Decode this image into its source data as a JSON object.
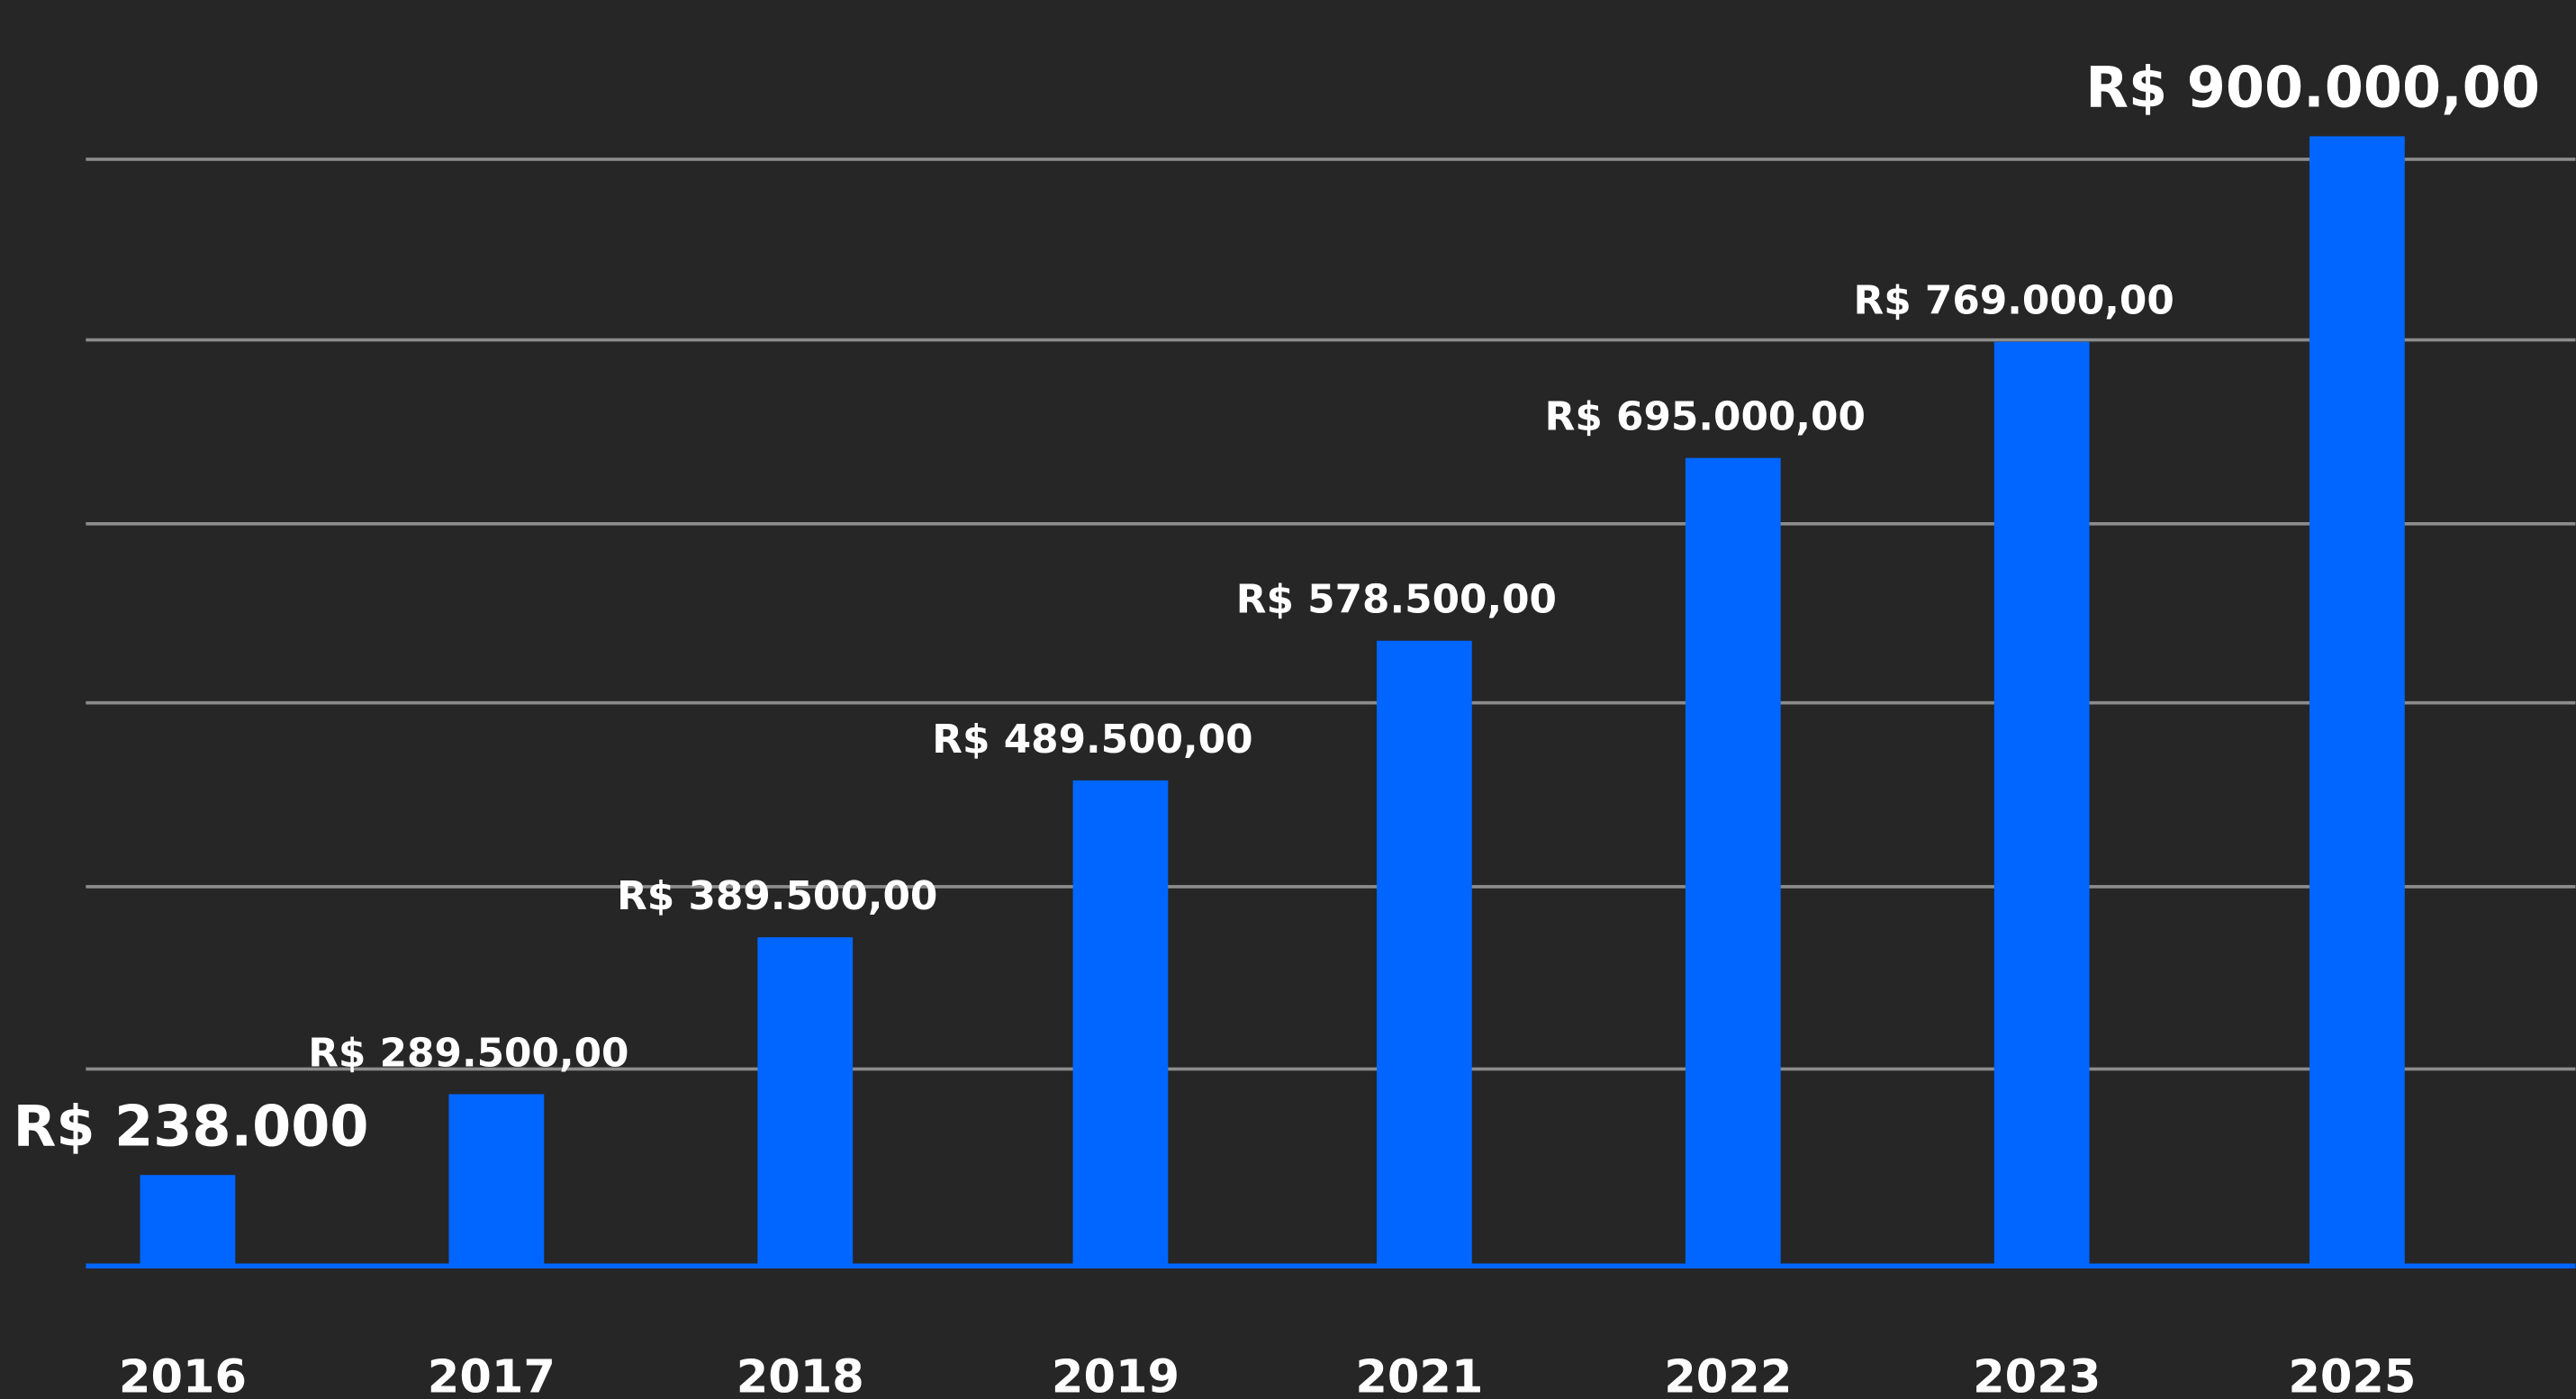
{
  "chart_data": {
    "type": "bar",
    "categories": [
      "2016",
      "2017",
      "2018",
      "2019",
      "2021",
      "2022",
      "2023",
      "2025"
    ],
    "values": [
      238000,
      289500,
      389500,
      489500,
      578500,
      695000,
      769000,
      900000
    ],
    "value_labels": [
      "R$ 238.000",
      "R$ 289.500,00",
      "R$ 389.500,00",
      "R$ 489.500,00",
      "R$ 578.500,00",
      "R$ 695.000,00",
      "R$ 769.000,00",
      "R$ 900.000,00"
    ],
    "color": "#0066ff",
    "ylim": [
      180000,
      900000
    ]
  }
}
